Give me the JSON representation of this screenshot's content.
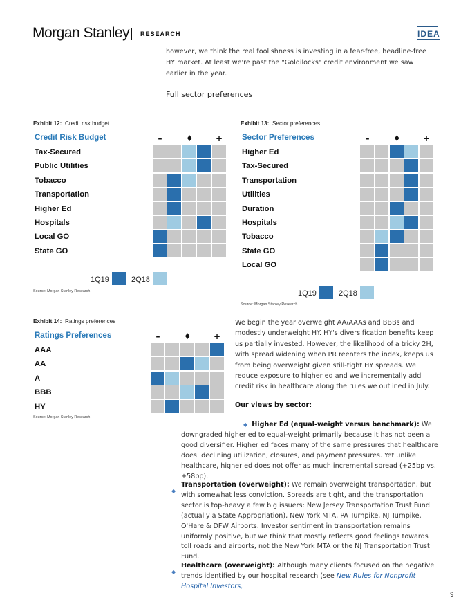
{
  "header": {
    "brand": "Morgan Stanley",
    "section": "RESEARCH",
    "tag": "IDEA"
  },
  "intro": {
    "text": "however, we think the real foolishness is investing in a fear-free, headline-free HY market. At least we're past the \"Goldilocks\" credit environment we saw earlier in the year.",
    "subheading": "Full sector preferences"
  },
  "exhibit12": {
    "number": "Exhibit 12:",
    "caption": "Credit risk budget",
    "title": "Credit Risk Budget",
    "header_symbols": [
      "–",
      "♦",
      "+"
    ],
    "rows": [
      {
        "label": "Tax-Secured",
        "q1_19": 4,
        "q2_18": 3
      },
      {
        "label": "Public Utilities",
        "q1_19": 4,
        "q2_18": 3
      },
      {
        "label": "Tobacco",
        "q1_19": 2,
        "q2_18": 3
      },
      {
        "label": "Transportation",
        "q1_19": 2,
        "q2_18": 2
      },
      {
        "label": "Higher Ed",
        "q1_19": 2,
        "q2_18": 2
      },
      {
        "label": "Hospitals",
        "q1_19": 4,
        "q2_18": 2
      },
      {
        "label": "Local GO",
        "q1_19": 1,
        "q2_18": 1
      },
      {
        "label": "State GO",
        "q1_19": 1,
        "q2_18": 1
      }
    ],
    "legend": {
      "current": "1Q19",
      "previous": "2Q18"
    },
    "source": "Source: Morgan Stanley Research"
  },
  "exhibit13": {
    "number": "Exhibit 13:",
    "caption": "Sector preferences",
    "title": "Sector Preferences",
    "header_symbols": [
      "–",
      "♦",
      "+"
    ],
    "rows": [
      {
        "label": "Higher Ed",
        "q1_19": 3,
        "q2_18": 4
      },
      {
        "label": "Tax-Secured",
        "q1_19": 4,
        "q2_18": 4
      },
      {
        "label": "Transportation",
        "q1_19": 4,
        "q2_18": 4
      },
      {
        "label": "Utilities",
        "q1_19": 4,
        "q2_18": 4
      },
      {
        "label": "Duration",
        "q1_19": 3,
        "q2_18": 3
      },
      {
        "label": "Hospitals",
        "q1_19": 4,
        "q2_18": 3
      },
      {
        "label": "Tobacco",
        "q1_19": 3,
        "q2_18": 2
      },
      {
        "label": "State GO",
        "q1_19": 2,
        "q2_18": 2
      },
      {
        "label": "Local GO",
        "q1_19": 2,
        "q2_18": 2
      }
    ],
    "legend": {
      "current": "1Q19",
      "previous": "2Q18"
    },
    "source": "Source: Morgan Stanley Research"
  },
  "exhibit14": {
    "number": "Exhibit 14:",
    "caption": "Ratings preferences",
    "title": "Ratings Preferences",
    "header_symbols": [
      "–",
      "♦",
      "+"
    ],
    "rows": [
      {
        "label": "AAA",
        "q1_19": 5,
        "q2_18": 5
      },
      {
        "label": "AA",
        "q1_19": 3,
        "q2_18": 4
      },
      {
        "label": "A",
        "q1_19": 1,
        "q2_18": 2
      },
      {
        "label": "BBB",
        "q1_19": 4,
        "q2_18": 3
      },
      {
        "label": "HY",
        "q1_19": 2,
        "q2_18": 2
      }
    ],
    "source": "Source: Morgan Stanley Research"
  },
  "body": {
    "paragraph": "We begin the year overweight AA/AAAs and BBBs and modestly underweight HY. HY's diversification benefits keep us partially invested. However, the likelihood of a tricky 2H, with spread widening when PR reenters the index, keeps us from being overweight given still-tight HY spreads. We reduce exposure to higher ed and we incrementally add credit risk in healthcare along the rules we outlined in July.",
    "views_heading": "Our views by sector:",
    "bullets": [
      {
        "lead": "Higher Ed (equal-weight versus benchmark):",
        "text": "We downgraded higher ed to equal-weight primarily because it has not been a good diversifier. Higher ed faces many of the same pressures that healthcare does: declining utilization, closures, and payment pressures. Yet unlike healthcare, higher ed does not offer as much incremental spread (+25bp vs. +58bp)."
      },
      {
        "lead": "Transportation (overweight):",
        "text": "We remain overweight transportation, but with somewhat less conviction. Spreads are tight, and the transportation sector is top-heavy a few big issuers: New Jersey Transportation Trust Fund (actually a State Appropriation), New York MTA, PA Turnpike, NJ Turnpike, O'Hare & DFW Airports. Investor sentiment in transportation remains uniformly positive, but we think that mostly reflects good feelings towards toll roads and airports, not the New York MTA or the NJ Transportation Trust Fund."
      },
      {
        "lead": "Healthcare (overweight):",
        "text": "Although many clients focused on the negative trends identified by our hospital research (see",
        "link": "New Rules for Nonprofit Hospital Investors,"
      }
    ]
  },
  "page_number": "9",
  "colors": {
    "dark": "#2a6fad",
    "light": "#9fcbe2",
    "empty": "#c8c8c8",
    "accent": "#2a7ab8"
  }
}
